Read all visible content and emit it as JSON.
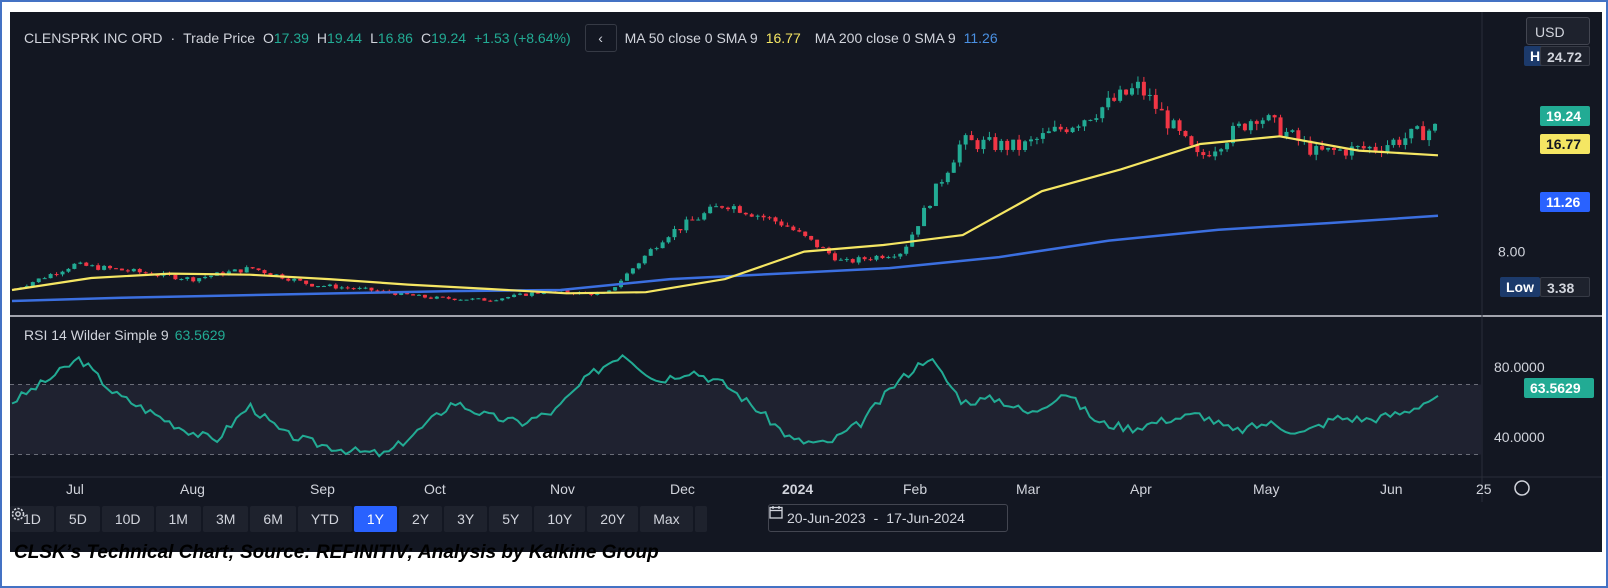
{
  "caption": "CLSK’s Technical Chart; Source: REFINITIV; Analysis by Kalkine Group",
  "header": {
    "symbol": "CLENSPRK INC ORD",
    "separator": "·",
    "price_type": "Trade Price",
    "o_label": "O",
    "o_value": "17.39",
    "h_label": "H",
    "h_value": "19.44",
    "l_label": "L",
    "l_value": "16.86",
    "c_label": "C",
    "c_value": "19.24",
    "change": "+1.53 (+8.64%)",
    "back_glyph": "‹",
    "ma50_label": "MA 50 close 0 SMA 9",
    "ma50_value": "16.77",
    "ma200_label": "MA 200 close 0 SMA 9",
    "ma200_value": "11.26"
  },
  "currency": "USD",
  "badges": {
    "high_label": "High",
    "high_value": "24.72",
    "last": "19.24",
    "ma50": "16.77",
    "ma200": "11.26",
    "low_label": "Low",
    "low_value": "3.38",
    "rsi_last": "63.5629"
  },
  "rsi_header": {
    "label": "RSI 14 Wilder Simple 9",
    "value": "63.5629"
  },
  "timeframes": [
    "1D",
    "5D",
    "10D",
    "1M",
    "3M",
    "6M",
    "YTD",
    "1Y",
    "2Y",
    "3Y",
    "5Y",
    "10Y",
    "20Y",
    "Max"
  ],
  "active_timeframe": "1Y",
  "date_range": {
    "start": "20-Jun-2023",
    "sep": "-",
    "end": "17-Jun-2024"
  },
  "icons": {
    "settings": "gear-icon",
    "calendar": "calendar-icon",
    "nav": "compass-icon"
  },
  "colors": {
    "bg": "#131722",
    "up": "#22ab94",
    "down": "#f23645",
    "ma50": "#f5e663",
    "ma200": "#3b6fe0",
    "rsi": "#22ab94"
  },
  "chart_data": {
    "type": "candlestick",
    "price_axis": {
      "ticks": [
        8.0
      ],
      "ylim": [
        2.5,
        26
      ]
    },
    "rsi_axis": {
      "ticks": [
        40.0,
        80.0
      ],
      "ylim": [
        20,
        100
      ],
      "bands": [
        30,
        70
      ]
    },
    "x_axis_labels": [
      "Jul",
      "Aug",
      "Sep",
      "Oct",
      "Nov",
      "Dec",
      "2024",
      "Feb",
      "Mar",
      "Apr",
      "May",
      "Jun",
      "25"
    ],
    "candles_approx": [
      {
        "month": "Jul",
        "close": 4.6
      },
      {
        "month": "Jul",
        "close": 6.8
      },
      {
        "month": "Aug",
        "close": 6.2
      },
      {
        "month": "Aug",
        "close": 5.5
      },
      {
        "month": "Aug",
        "close": 6.5
      },
      {
        "month": "Sep",
        "close": 5.0
      },
      {
        "month": "Sep",
        "close": 4.5
      },
      {
        "month": "Oct",
        "close": 3.8
      },
      {
        "month": "Oct",
        "close": 3.6
      },
      {
        "month": "Nov",
        "close": 4.4
      },
      {
        "month": "Nov",
        "close": 4.1
      },
      {
        "month": "Dec",
        "close": 9.5
      },
      {
        "month": "Dec",
        "close": 12.4
      },
      {
        "month": "2024",
        "close": 10.5
      },
      {
        "month": "2024",
        "close": 7.0
      },
      {
        "month": "Feb",
        "close": 8.0
      },
      {
        "month": "Feb",
        "close": 18.0
      },
      {
        "month": "Mar",
        "close": 17.5
      },
      {
        "month": "Mar",
        "close": 20.0
      },
      {
        "month": "Apr",
        "close": 23.0
      },
      {
        "month": "Apr",
        "close": 16.5
      },
      {
        "month": "May",
        "close": 20.5
      },
      {
        "month": "May",
        "close": 17.0
      },
      {
        "month": "Jun",
        "close": 17.5
      },
      {
        "month": "Jun",
        "close": 19.24
      }
    ],
    "ma50_approx": [
      4.5,
      5.6,
      6.0,
      5.9,
      5.5,
      5.0,
      4.6,
      4.2,
      4.3,
      5.5,
      8.0,
      8.6,
      9.5,
      13.5,
      15.5,
      17.8,
      18.5,
      17.2,
      16.77
    ],
    "ma200_approx": [
      3.5,
      3.8,
      4.0,
      4.2,
      4.4,
      4.5,
      5.5,
      6.0,
      6.5,
      7.5,
      9.0,
      10.0,
      10.6,
      11.26
    ],
    "rsi_approx": [
      60,
      72,
      85,
      65,
      55,
      45,
      38,
      58,
      42,
      36,
      32,
      30,
      44,
      60,
      52,
      48,
      55,
      75,
      88,
      72,
      78,
      70,
      55,
      38,
      36,
      48,
      70,
      86,
      60,
      62,
      53,
      66,
      48,
      45,
      50,
      53,
      43,
      48,
      42,
      51,
      50,
      54,
      63.5629
    ]
  }
}
